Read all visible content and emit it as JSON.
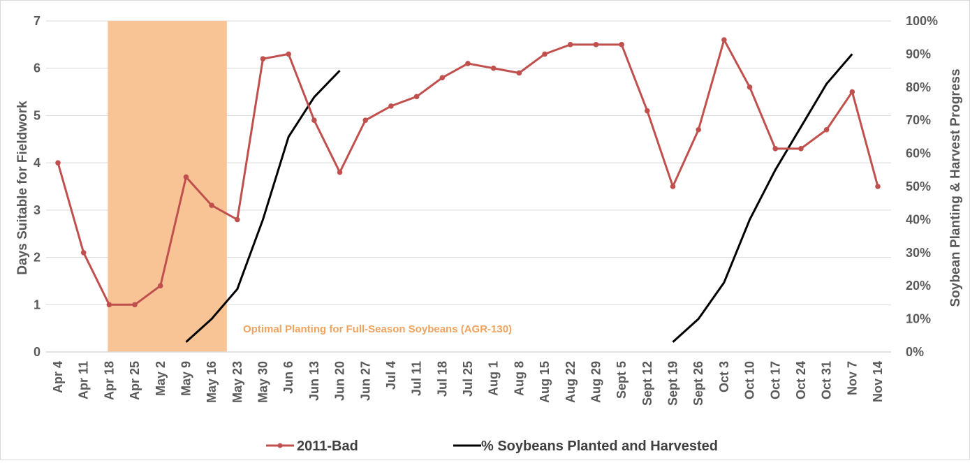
{
  "chart_data": {
    "type": "line",
    "categories": [
      "Apr 4",
      "Apr 11",
      "Apr 18",
      "Apr 25",
      "May 2",
      "May 9",
      "May 16",
      "May 23",
      "May 30",
      "Jun 6",
      "Jun 13",
      "Jun 20",
      "Jun 27",
      "Jul 4",
      "Jul 11",
      "Jul 18",
      "Jul 25",
      "Aug 1",
      "Aug 8",
      "Aug 15",
      "Aug 22",
      "Aug 29",
      "Sept 5",
      "Sept 12",
      "Sept 19",
      "Sept 26",
      "Oct 3",
      "Oct 10",
      "Oct 17",
      "Oct 24",
      "Oct 31",
      "Nov 7",
      "Nov 14"
    ],
    "series": [
      {
        "name": "2011-Bad",
        "axis": "left",
        "color": "#c0504d",
        "values": [
          4.0,
          2.1,
          1.0,
          1.0,
          1.4,
          3.7,
          3.1,
          2.8,
          6.2,
          6.3,
          4.9,
          3.8,
          4.9,
          5.2,
          5.4,
          5.8,
          6.1,
          6.0,
          5.9,
          6.3,
          6.5,
          6.5,
          6.5,
          5.1,
          3.5,
          4.7,
          6.6,
          5.6,
          4.3,
          4.3,
          4.7,
          5.5,
          3.5
        ]
      },
      {
        "name": "% Soybeans Planted and Harvested",
        "axis": "right",
        "color": "#000000",
        "segments": [
          {
            "x": [
              "May 9",
              "May 16",
              "May 23",
              "May 30",
              "Jun 6",
              "Jun 13",
              "Jun 20"
            ],
            "values": [
              3,
              10,
              19,
              40,
              65,
              77,
              85
            ]
          },
          {
            "x": [
              "Sept 19",
              "Sept 26",
              "Oct 3",
              "Oct 10",
              "Oct 17",
              "Oct 24",
              "Oct 31",
              "Nov 7"
            ],
            "values": [
              3,
              10,
              21,
              40,
              55,
              68,
              81,
              90
            ]
          }
        ]
      }
    ],
    "ylabel": "Days Suitable for Fieldwork",
    "ylim": [
      0,
      7
    ],
    "yticks": [
      "0",
      "1",
      "2",
      "3",
      "4",
      "5",
      "6",
      "7"
    ],
    "y2label": "Soybean Planting & Harvest Progress",
    "y2lim": [
      0,
      100
    ],
    "y2ticks": [
      "0%",
      "10%",
      "20%",
      "30%",
      "40%",
      "50%",
      "60%",
      "70%",
      "80%",
      "90%",
      "100%"
    ],
    "shaded_region": {
      "from": "Apr 18",
      "to": "May 23",
      "color": "#f8c496",
      "label": "Optimal Planting for Full-Season Soybeans (AGR-130)",
      "label_color": "#f0a35e"
    },
    "grid": "horizontal",
    "legend_position": "bottom"
  }
}
